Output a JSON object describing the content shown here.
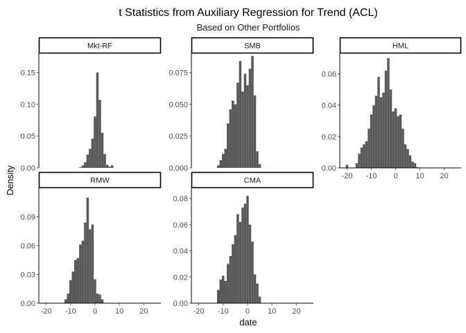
{
  "chart_data": {
    "type": "bar",
    "title": "t Statistics from Auxiliary Regression for Trend (ACL)",
    "subtitle": "Based on Other Portfolios",
    "xlabel": "date",
    "ylabel": "Density",
    "bar_color": "#595959",
    "strip_border_color": "#000000",
    "tick_color": "#4d4d4d",
    "grid": false,
    "panels": [
      {
        "name": "Mkt-RF",
        "xlim": [
          -23,
          27
        ],
        "ylim": [
          0,
          0.18
        ],
        "xticks": [
          -20,
          -10,
          0,
          10,
          20
        ],
        "xtick_labels": [
          "-20",
          "-10",
          "0",
          "10",
          "20"
        ],
        "yticks": [
          0,
          0.05,
          0.1,
          0.15
        ],
        "ytick_labels": [
          "0.00",
          "0.05",
          "0.10",
          "0.15"
        ],
        "show_xaxis": false,
        "bars": [
          [
            -6,
            0.001
          ],
          [
            -5,
            0.004
          ],
          [
            -4,
            0.009
          ],
          [
            -3,
            0.021
          ],
          [
            -2,
            0.03
          ],
          [
            -1,
            0.046
          ],
          [
            0,
            0.081
          ],
          [
            1,
            0.15
          ],
          [
            2,
            0.107
          ],
          [
            3,
            0.055
          ],
          [
            4,
            0.022
          ],
          [
            5,
            0.005
          ],
          [
            6,
            0.002
          ],
          [
            7,
            0.004
          ]
        ]
      },
      {
        "name": "SMB",
        "xlim": [
          -23,
          27
        ],
        "ylim": [
          0,
          0.09
        ],
        "xticks": [
          -20,
          -10,
          0,
          10,
          20
        ],
        "xtick_labels": [
          "-20",
          "-10",
          "0",
          "10",
          "20"
        ],
        "yticks": [
          0,
          0.025,
          0.05,
          0.075
        ],
        "ytick_labels": [
          "0.000",
          "0.025",
          "0.050",
          "0.075"
        ],
        "show_xaxis": false,
        "bars": [
          [
            -12,
            0.002
          ],
          [
            -11,
            0.006
          ],
          [
            -10,
            0.011
          ],
          [
            -9,
            0.015
          ],
          [
            -8,
            0.035
          ],
          [
            -7,
            0.046
          ],
          [
            -6,
            0.053
          ],
          [
            -5,
            0.05
          ],
          [
            -4,
            0.067
          ],
          [
            -3,
            0.084
          ],
          [
            -2,
            0.06
          ],
          [
            -1,
            0.074
          ],
          [
            0,
            0.065
          ],
          [
            1,
            0.078
          ],
          [
            2,
            0.088
          ],
          [
            3,
            0.057
          ],
          [
            4,
            0.013
          ],
          [
            5,
            0.003
          ]
        ]
      },
      {
        "name": "HML",
        "xlim": [
          -23,
          27
        ],
        "ylim": [
          0,
          0.073
        ],
        "xticks": [
          -20,
          -10,
          0,
          10,
          20
        ],
        "xtick_labels": [
          "-20",
          "-10",
          "0",
          "10",
          "20"
        ],
        "yticks": [
          0,
          0.02,
          0.04,
          0.06
        ],
        "ytick_labels": [
          "0.00",
          "0.02",
          "0.04",
          "0.06"
        ],
        "show_xaxis": true,
        "bars": [
          [
            -20,
            0.002
          ],
          [
            -19,
            0.0
          ],
          [
            -18,
            0.0
          ],
          [
            -16,
            0.003
          ],
          [
            -15,
            0.009
          ],
          [
            -14,
            0.013
          ],
          [
            -13,
            0.015
          ],
          [
            -12,
            0.017
          ],
          [
            -11,
            0.025
          ],
          [
            -10,
            0.034
          ],
          [
            -9,
            0.04
          ],
          [
            -8,
            0.046
          ],
          [
            -7,
            0.058
          ],
          [
            -6,
            0.045
          ],
          [
            -5,
            0.048
          ],
          [
            -4,
            0.062
          ],
          [
            -3,
            0.07
          ],
          [
            -2,
            0.05
          ],
          [
            -1,
            0.036
          ],
          [
            0,
            0.038
          ],
          [
            1,
            0.033
          ],
          [
            2,
            0.034
          ],
          [
            3,
            0.025
          ],
          [
            4,
            0.015
          ],
          [
            5,
            0.012
          ],
          [
            6,
            0.008
          ],
          [
            7,
            0.004
          ],
          [
            8,
            0.003
          ],
          [
            9,
            0.0005
          ]
        ]
      },
      {
        "name": "RMW",
        "xlim": [
          -23,
          27
        ],
        "ylim": [
          0,
          0.12
        ],
        "xticks": [
          -20,
          -10,
          0,
          10,
          20
        ],
        "xtick_labels": [
          "-20",
          "-10",
          "0",
          "10",
          "20"
        ],
        "yticks": [
          0,
          0.03,
          0.06,
          0.09
        ],
        "ytick_labels": [
          "0.00",
          "0.03",
          "0.06",
          "0.09"
        ],
        "show_xaxis": true,
        "bars": [
          [
            -12,
            0.004
          ],
          [
            -11,
            0.01
          ],
          [
            -10,
            0.024
          ],
          [
            -9,
            0.033
          ],
          [
            -8,
            0.045
          ],
          [
            -7,
            0.047
          ],
          [
            -6,
            0.061
          ],
          [
            -5,
            0.065
          ],
          [
            -4,
            0.084
          ],
          [
            -3,
            0.11
          ],
          [
            -2,
            0.077
          ],
          [
            -1,
            0.082
          ],
          [
            0,
            0.025
          ],
          [
            1,
            0.01
          ],
          [
            2,
            0.009
          ],
          [
            3,
            0.004
          ]
        ]
      },
      {
        "name": "CMA",
        "xlim": [
          -23,
          27
        ],
        "ylim": [
          0,
          0.088
        ],
        "xticks": [
          -20,
          -10,
          0,
          10,
          20
        ],
        "xtick_labels": [
          "-20",
          "-10",
          "0",
          "10",
          "20"
        ],
        "yticks": [
          0,
          0.02,
          0.04,
          0.06,
          0.08
        ],
        "ytick_labels": [
          "0.00",
          "0.02",
          "0.04",
          "0.06",
          "0.08"
        ],
        "show_xaxis": true,
        "bars": [
          [
            -12,
            0.01
          ],
          [
            -11,
            0.018
          ],
          [
            -10,
            0.021
          ],
          [
            -9,
            0.017
          ],
          [
            -8,
            0.03
          ],
          [
            -7,
            0.036
          ],
          [
            -6,
            0.045
          ],
          [
            -5,
            0.052
          ],
          [
            -4,
            0.068
          ],
          [
            -3,
            0.062
          ],
          [
            -2,
            0.073
          ],
          [
            -1,
            0.076
          ],
          [
            0,
            0.082
          ],
          [
            1,
            0.06
          ],
          [
            2,
            0.047
          ],
          [
            3,
            0.022
          ],
          [
            4,
            0.015
          ],
          [
            5,
            0.005
          ]
        ]
      }
    ]
  }
}
